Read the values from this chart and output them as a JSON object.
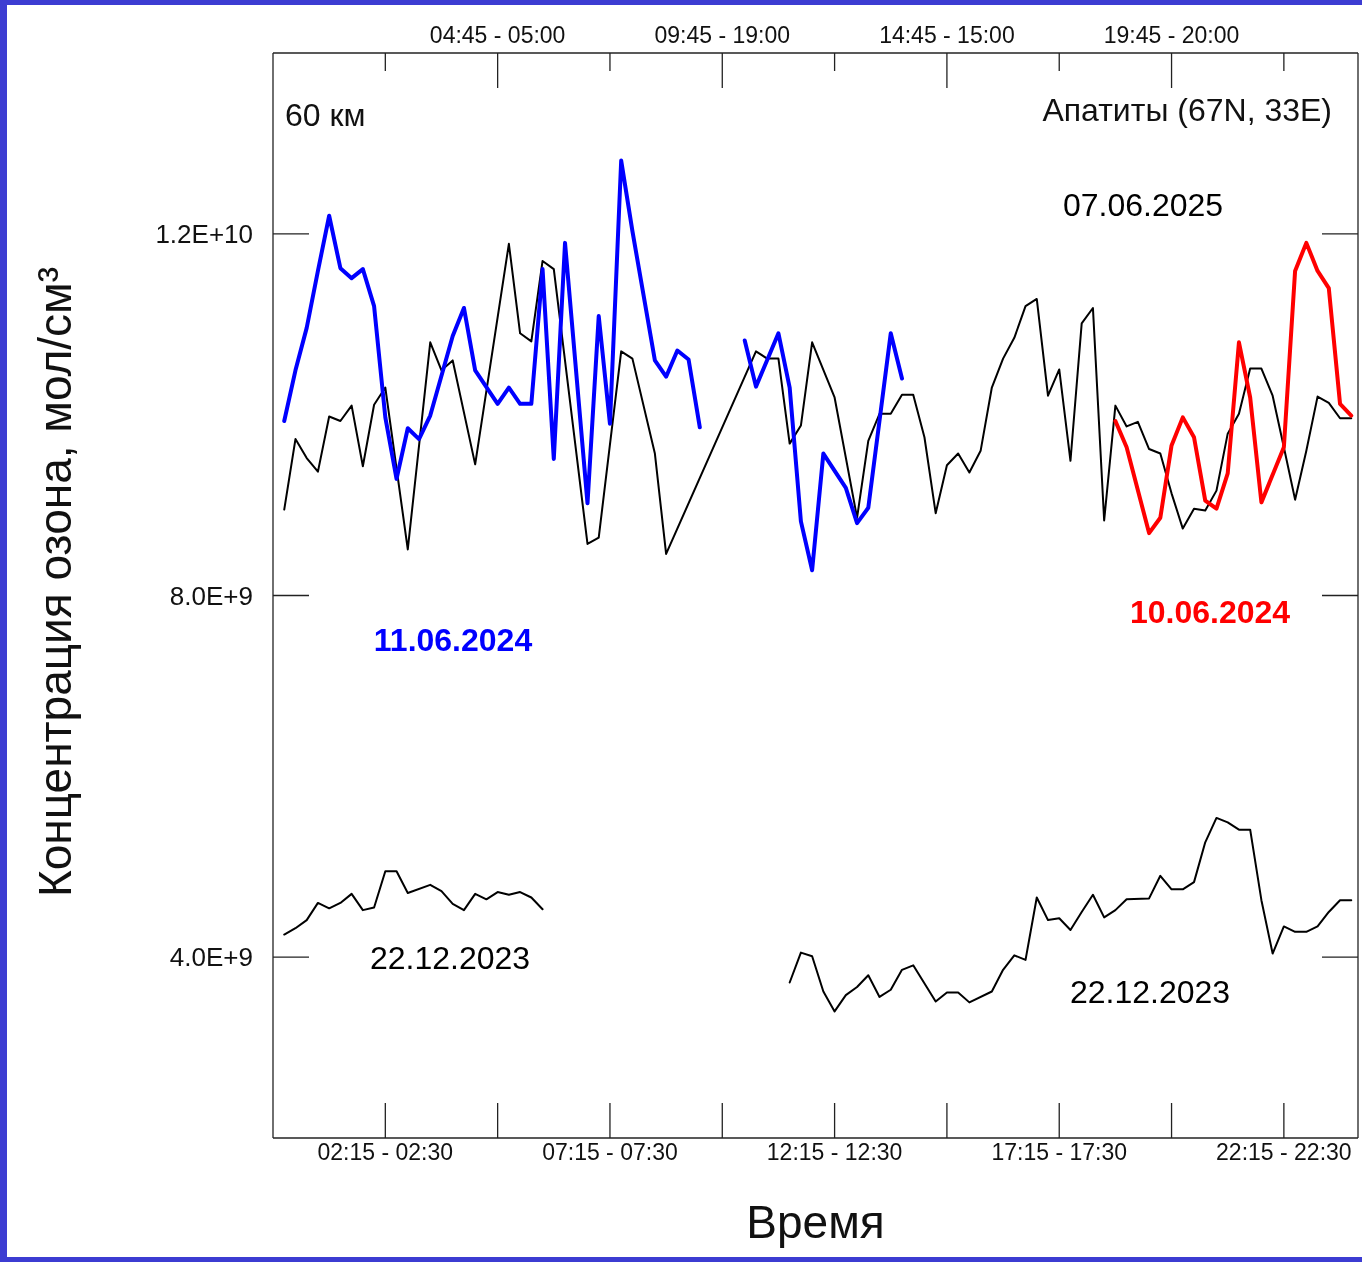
{
  "chart_data": {
    "type": "line",
    "xlabel": "Время",
    "ylabel": "Концентрация озона, мол/см³",
    "annotations": [
      "60 км",
      "Апатиты (67N, 33E)"
    ],
    "categories": [
      null,
      null,
      null,
      null,
      null,
      null,
      null,
      null,
      null,
      null,
      "02:15 - 02:30",
      null,
      null,
      null,
      null,
      null,
      null,
      null,
      null,
      null,
      "04:45 - 05:00",
      null,
      null,
      null,
      null,
      null,
      null,
      null,
      null,
      null,
      "07:15 - 07:30",
      null,
      null,
      null,
      null,
      null,
      null,
      null,
      null,
      null,
      "09:45 - 19:00",
      null,
      null,
      null,
      null,
      null,
      null,
      null,
      null,
      null,
      "12:15 - 12:30",
      null,
      null,
      null,
      null,
      null,
      null,
      null,
      null,
      null,
      "14:45 - 15:00",
      null,
      null,
      null,
      null,
      null,
      null,
      null,
      null,
      null,
      "17:15 - 17:30",
      null,
      null,
      null,
      null,
      null,
      null,
      null,
      null,
      null,
      "19:45 - 20:00",
      null,
      null,
      null,
      null,
      null,
      null,
      null,
      null,
      null,
      "22:15 - 22:30",
      null,
      null,
      null,
      null,
      null,
      null
    ],
    "ylim": [
      2000000000.0,
      14000000000.0
    ],
    "yticks": [
      {
        "value": 4000000000.0,
        "label": "4.0E+9"
      },
      {
        "value": 8000000000.0,
        "label": "8.0E+9"
      },
      {
        "value": 12000000000.0,
        "label": "1.2E+10"
      }
    ],
    "marker": "none",
    "line_style": "solid",
    "series": [
      {
        "name": "07.06.2025",
        "color": "#000000",
        "values": [
          null,
          8950000000.0,
          9730000000.0,
          9520000000.0,
          9370000000.0,
          9980000000.0,
          9930000000.0,
          10100000000.0,
          9430000000.0,
          10110000000.0,
          10300000000.0,
          null,
          8510000000.0,
          null,
          10800000000.0,
          10490000000.0,
          10600000000.0,
          null,
          9450000000.0,
          null,
          null,
          11890000000.0,
          10900000000.0,
          10810000000.0,
          11700000000.0,
          11610000000.0,
          null,
          null,
          8570000000.0,
          8640000000.0,
          null,
          10700000000.0,
          10620000000.0,
          null,
          9570000000.0,
          8460000000.0,
          null,
          null,
          null,
          null,
          null,
          null,
          null,
          10700000000.0,
          10620000000.0,
          10620000000.0,
          9680000000.0,
          9880000000.0,
          10800000000.0,
          null,
          10190000000.0,
          null,
          8860000000.0,
          9710000000.0,
          10010000000.0,
          10010000000.0,
          10220000000.0,
          10220000000.0,
          9750000000.0,
          8910000000.0,
          9440000000.0,
          9570000000.0,
          9360000000.0,
          9600000000.0,
          10300000000.0,
          10620000000.0,
          10850000000.0,
          11200000000.0,
          11280000000.0,
          10210000000.0,
          10500000000.0,
          9490000000.0,
          11010000000.0,
          11180000000.0,
          8830000000.0,
          10100000000.0,
          9870000000.0,
          9920000000.0,
          9620000000.0,
          9570000000.0,
          9130000000.0,
          8740000000.0,
          8960000000.0,
          8940000000.0,
          9160000000.0,
          9790000000.0,
          10010000000.0,
          10510000000.0,
          10510000000.0,
          10210000000.0,
          9640000000.0,
          9060000000.0,
          9600000000.0,
          10200000000.0,
          10130000000.0,
          9960000000.0,
          9960000000.0
        ]
      },
      {
        "name": "11.06.2024",
        "color": "#0000ff",
        "values": [
          null,
          9930000000.0,
          10490000000.0,
          10960000000.0,
          11590000000.0,
          12200000000.0,
          11620000000.0,
          11510000000.0,
          11610000000.0,
          11200000000.0,
          9970000000.0,
          9290000000.0,
          9850000000.0,
          9730000000.0,
          9990000000.0,
          null,
          10870000000.0,
          11180000000.0,
          10490000000.0,
          null,
          10120000000.0,
          10300000000.0,
          10120000000.0,
          10120000000.0,
          11610000000.0,
          9510000000.0,
          11900000000.0,
          null,
          9020000000.0,
          11090000000.0,
          9900000000.0,
          12810000000.0,
          12030000000.0,
          null,
          10600000000.0,
          10420000000.0,
          10710000000.0,
          10610000000.0,
          9860000000.0,
          null,
          null,
          null,
          null,
          null,
          null,
          null,
          null,
          null,
          null,
          null,
          null,
          null,
          null,
          null,
          null,
          null,
          null,
          null,
          null,
          null,
          null,
          null,
          null,
          null,
          null,
          null,
          null,
          null,
          null,
          null,
          null,
          null,
          null,
          null,
          null,
          null,
          null,
          null,
          null,
          null,
          null,
          null,
          null,
          null,
          null,
          null,
          null,
          null,
          null,
          null,
          null,
          null,
          null,
          null,
          null,
          null,
          null
        ]
      },
      {
        "color": "#0000ff",
        "values": [
          null,
          null,
          null,
          null,
          null,
          null,
          null,
          null,
          null,
          null,
          null,
          null,
          null,
          null,
          null,
          null,
          null,
          null,
          null,
          null,
          null,
          null,
          null,
          null,
          null,
          null,
          null,
          null,
          null,
          null,
          null,
          null,
          null,
          null,
          null,
          null,
          null,
          null,
          null,
          null,
          null,
          null,
          10820000000.0,
          10310000000.0,
          null,
          10900000000.0,
          10300000000.0,
          8820000000.0,
          8280000000.0,
          9570000000.0,
          null,
          9190000000.0,
          8800000000.0,
          8970000000.0,
          null,
          10900000000.0,
          10400000000.0,
          null,
          null,
          null,
          null,
          null,
          null,
          null,
          null,
          null,
          null,
          null,
          null,
          null,
          null,
          null,
          null,
          null,
          null,
          null,
          null,
          null,
          null,
          null,
          null,
          null,
          null,
          null,
          null,
          null,
          null,
          null,
          null,
          null,
          null,
          null,
          null,
          null,
          null,
          null,
          null
        ]
      },
      {
        "name": "10.06.2024",
        "color": "#ff0000",
        "values": [
          null,
          null,
          null,
          null,
          null,
          null,
          null,
          null,
          null,
          null,
          null,
          null,
          null,
          null,
          null,
          null,
          null,
          null,
          null,
          null,
          null,
          null,
          null,
          null,
          null,
          null,
          null,
          null,
          null,
          null,
          null,
          null,
          null,
          null,
          null,
          null,
          null,
          null,
          null,
          null,
          null,
          null,
          null,
          null,
          null,
          null,
          null,
          null,
          null,
          null,
          null,
          null,
          null,
          null,
          null,
          null,
          null,
          null,
          null,
          null,
          null,
          null,
          null,
          null,
          null,
          null,
          null,
          null,
          null,
          null,
          null,
          null,
          null,
          null,
          null,
          9930000000.0,
          9640000000.0,
          null,
          8690000000.0,
          8860000000.0,
          9660000000.0,
          9970000000.0,
          9750000000.0,
          9050000000.0,
          8960000000.0,
          9350000000.0,
          10800000000.0,
          10190000000.0,
          9030000000.0,
          null,
          9640000000.0,
          11590000000.0,
          11900000000.0,
          11590000000.0,
          11400000000.0,
          10120000000.0,
          9990000000.0
        ]
      },
      {
        "name": "22.12.2023",
        "color": "#000000",
        "values": [
          null,
          4250000000.0,
          4320000000.0,
          4410000000.0,
          4600000000.0,
          4540000000.0,
          4600000000.0,
          4700000000.0,
          4520000000.0,
          4550000000.0,
          4950000000.0,
          4950000000.0,
          4710000000.0,
          null,
          4800000000.0,
          4730000000.0,
          4590000000.0,
          4520000000.0,
          4700000000.0,
          4640000000.0,
          4720000000.0,
          4690000000.0,
          4720000000.0,
          4660000000.0,
          4530000000.0,
          null,
          null,
          null,
          null,
          null,
          null,
          null,
          null,
          null,
          null,
          null,
          null,
          null,
          null,
          null,
          null,
          null,
          null,
          null,
          null,
          null,
          null,
          null,
          null,
          null,
          null,
          null,
          null,
          null,
          null,
          null,
          null,
          null,
          null,
          null,
          null,
          null,
          null,
          null,
          null,
          null,
          null,
          null,
          null,
          null,
          null,
          null,
          null,
          null,
          null,
          null,
          null,
          null,
          null,
          null,
          null,
          null,
          null,
          null,
          null,
          null,
          null,
          null,
          null,
          null,
          null,
          null,
          null,
          null,
          null,
          null,
          null
        ]
      },
      {
        "name": "22.12.2023",
        "color": "#000000",
        "values": [
          null,
          null,
          null,
          null,
          null,
          null,
          null,
          null,
          null,
          null,
          null,
          null,
          null,
          null,
          null,
          null,
          null,
          null,
          null,
          null,
          null,
          null,
          null,
          null,
          null,
          null,
          null,
          null,
          null,
          null,
          null,
          null,
          null,
          null,
          null,
          null,
          null,
          null,
          null,
          null,
          null,
          null,
          null,
          null,
          null,
          null,
          3720000000.0,
          4050000000.0,
          4010000000.0,
          3620000000.0,
          3400000000.0,
          3580000000.0,
          3670000000.0,
          3800000000.0,
          3560000000.0,
          3640000000.0,
          3860000000.0,
          3910000000.0,
          null,
          3510000000.0,
          3610000000.0,
          3610000000.0,
          3500000000.0,
          null,
          3620000000.0,
          3860000000.0,
          4020000000.0,
          3970000000.0,
          4660000000.0,
          4410000000.0,
          4430000000.0,
          4300000000.0,
          4500000000.0,
          4690000000.0,
          4440000000.0,
          4520000000.0,
          4640000000.0,
          null,
          4650000000.0,
          4900000000.0,
          4750000000.0,
          4750000000.0,
          4830000000.0,
          5270000000.0,
          5540000000.0,
          5490000000.0,
          5410000000.0,
          5410000000.0,
          4630000000.0,
          4040000000.0,
          4340000000.0,
          4280000000.0,
          4280000000.0,
          4340000000.0,
          4500000000.0,
          4630000000.0,
          4630000000.0
        ]
      }
    ]
  }
}
